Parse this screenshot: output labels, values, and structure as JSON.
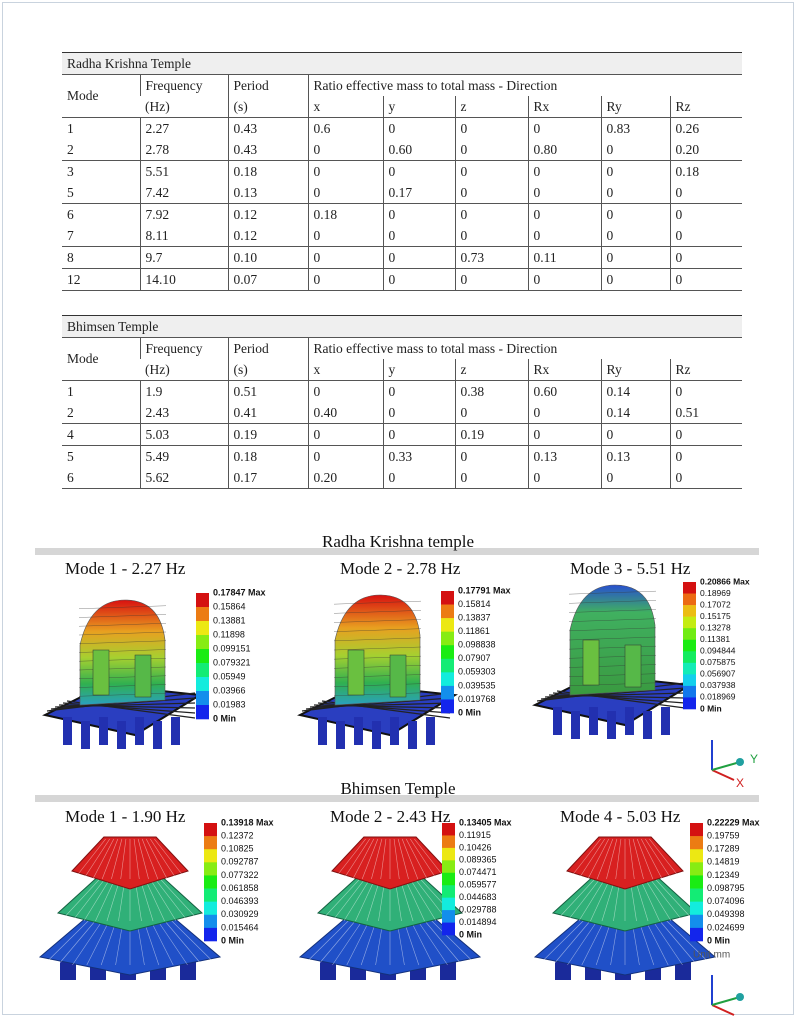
{
  "tables": [
    {
      "title": "Radha Krishna Temple",
      "header_row1": [
        "Mode",
        "Frequency",
        "Period",
        "Ratio effective mass to total mass - Direction"
      ],
      "header_row2": [
        "(Hz)",
        "(s)",
        "x",
        "y",
        "z",
        "Rx",
        "Ry",
        "Rz"
      ],
      "row_groups": [
        [
          [
            "1",
            "2.27",
            "0.43",
            "0.6",
            "0",
            "0",
            "0",
            "0.83",
            "0.26"
          ],
          [
            "2",
            "2.78",
            "0.43",
            "0",
            "0.60",
            "0",
            "0.80",
            "0",
            "0.20"
          ]
        ],
        [
          [
            "3",
            "5.51",
            "0.18",
            "0",
            "0",
            "0",
            "0",
            "0",
            "0.18"
          ],
          [
            "5",
            "7.42",
            "0.13",
            "0",
            "0.17",
            "0",
            "0",
            "0",
            "0"
          ]
        ],
        [
          [
            "6",
            "7.92",
            "0.12",
            "0.18",
            "0",
            "0",
            "0",
            "0",
            "0"
          ],
          [
            "7",
            "8.11",
            "0.12",
            "0",
            "0",
            "0",
            "0",
            "0",
            "0"
          ]
        ],
        [
          [
            "8",
            "9.7",
            "0.10",
            "0",
            "0",
            "0.73",
            "0.11",
            "0",
            "0"
          ]
        ],
        [
          [
            "12",
            "14.10",
            "0.07",
            "0",
            "0",
            "0",
            "0",
            "0",
            "0"
          ]
        ]
      ]
    },
    {
      "title": "Bhimsen Temple",
      "header_row1": [
        "Mode",
        "Frequency",
        "Period",
        "Ratio effective mass to total mass - Direction"
      ],
      "header_row2": [
        "(Hz)",
        "(s)",
        "x",
        "y",
        "z",
        "Rx",
        "Ry",
        "Rz"
      ],
      "row_groups": [
        [
          [
            "1",
            "1.9",
            "0.51",
            "0",
            "0",
            "0.38",
            "0.60",
            "0.14",
            "0"
          ],
          [
            "2",
            "2.43",
            "0.41",
            "0.40",
            "0",
            "0",
            "0",
            "0.14",
            "0.51"
          ]
        ],
        [
          [
            "4",
            "5.03",
            "0.19",
            "0",
            "0",
            "0.19",
            "0",
            "0",
            "0"
          ]
        ],
        [
          [
            "5",
            "5.49",
            "0.18",
            "0",
            "0.33",
            "0",
            "0.13",
            "0.13",
            "0"
          ],
          [
            "6",
            "5.62",
            "0.17",
            "0.20",
            "0",
            "0",
            "0",
            "0",
            "0"
          ]
        ]
      ]
    }
  ],
  "figures": [
    {
      "title": "Radha Krishna temple",
      "panels": [
        {
          "title": "Mode 1 - 2.27 Hz",
          "legend": [
            "0.17847 Max",
            "0.15864",
            "0.13881",
            "0.11898",
            "0.099151",
            "0.079321",
            "0.05949",
            "0.03966",
            "0.01983",
            "0 Min"
          ]
        },
        {
          "title": "Mode 2 - 2.78 Hz",
          "legend": [
            "0.17791 Max",
            "0.15814",
            "0.13837",
            "0.11861",
            "0.098838",
            "0.07907",
            "0.059303",
            "0.039535",
            "0.019768",
            "0 Min"
          ]
        },
        {
          "title": "Mode 3 - 5.51 Hz",
          "legend": [
            "0.20866 Max",
            "0.18969",
            "0.17072",
            "0.15175",
            "0.13278",
            "0.11381",
            "0.094844",
            "0.075875",
            "0.056907",
            "0.037938",
            "0.018969",
            "0 Min"
          ]
        }
      ]
    },
    {
      "title": "Bhimsen Temple",
      "panels": [
        {
          "title": "Mode 1 - 1.90 Hz",
          "legend": [
            "0.13918 Max",
            "0.12372",
            "0.10825",
            "0.092787",
            "0.077322",
            "0.061858",
            "0.046393",
            "0.030929",
            "0.015464",
            "0 Min"
          ]
        },
        {
          "title": "Mode 2 - 2.43 Hz",
          "legend": [
            "0.13405 Max",
            "0.11915",
            "0.10426",
            "0.089365",
            "0.074471",
            "0.059577",
            "0.044683",
            "0.029788",
            "0.014894",
            "0 Min"
          ]
        },
        {
          "title": "Mode 4 - 5.03 Hz",
          "legend": [
            "0.22229 Max",
            "0.19759",
            "0.17289",
            "0.14819",
            "0.12349",
            "0.098795",
            "0.074096",
            "0.049398",
            "0.024699",
            "0 Min"
          ]
        }
      ]
    }
  ],
  "unit_note": "Unit mm",
  "axis_labels": [
    "Y",
    "X"
  ]
}
